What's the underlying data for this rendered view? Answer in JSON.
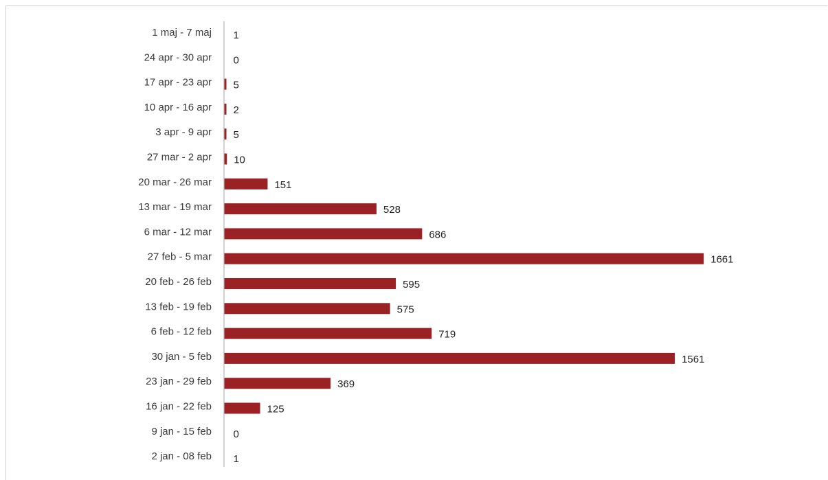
{
  "chart_data": {
    "type": "bar",
    "orientation": "horizontal",
    "categories": [
      "1 maj - 7 maj",
      "24 apr - 30 apr",
      "17 apr - 23 apr",
      "10 apr - 16 apr",
      "3 apr - 9 apr",
      "27 mar - 2 apr",
      "20 mar - 26 mar",
      "13 mar - 19 mar",
      "6 mar - 12 mar",
      "27 feb - 5 mar",
      "20 feb - 26 feb",
      "13 feb - 19 feb",
      "6 feb - 12 feb",
      "30 jan - 5 feb",
      "23 jan - 29 feb",
      "16 jan - 22 feb",
      "9 jan - 15 feb",
      "2 jan - 08 feb"
    ],
    "values": [
      1,
      0,
      5,
      2,
      5,
      10,
      151,
      528,
      686,
      1661,
      595,
      575,
      719,
      1561,
      369,
      125,
      0,
      1
    ],
    "title": "",
    "xlabel": "",
    "ylabel": "",
    "grid": false,
    "legend": "none",
    "bar_color": "#9b2224",
    "axis_color": "#b5b5b5"
  }
}
